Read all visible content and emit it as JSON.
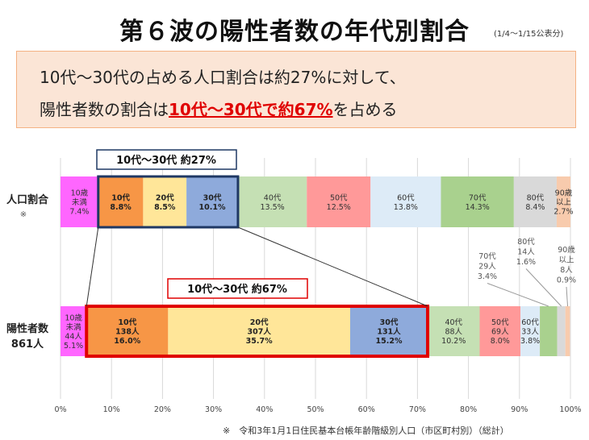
{
  "title": "第６波の陽性者数の年代別割合",
  "period_note": "(1/4～1/15公表分)",
  "summary": {
    "line1": "10代～30代の占める人口割合は約27%に対して、",
    "line2_prefix": "陽性者数の割合は",
    "line2_highlight": "10代～30代で約67%",
    "line2_suffix": "を占める"
  },
  "footnote": "※　令和3年1月1日住民基本台帳年齢階級別人口（市区町村別）（総計）",
  "colors": {
    "under10": "#ff66ff",
    "10s": "#f79646",
    "20s": "#ffe699",
    "30s": "#8eaadb",
    "40s": "#c5e0b4",
    "50s": "#ff9999",
    "60s": "#ddebf7",
    "70s": "#a9d18e",
    "80s": "#d9d9d9",
    "90plus": "#f8cbad",
    "highlight_box_pop": "#1f3864",
    "highlight_box_pos": "#e00000"
  },
  "chart_data": {
    "type": "bar",
    "orientation": "horizontal-stacked-100",
    "x_ticks": [
      "0%",
      "10%",
      "20%",
      "30%",
      "40%",
      "50%",
      "60%",
      "70%",
      "80%",
      "90%",
      "100%"
    ],
    "xlim": [
      0,
      100
    ],
    "grid": true,
    "categories": [
      "人口割合",
      "陽性者数"
    ],
    "row_labels": {
      "population": {
        "main": "人口割合",
        "note": "※"
      },
      "positives": {
        "main": "陽性者数",
        "sub": "861人"
      }
    },
    "series": [
      {
        "key": "under10",
        "name": "10歳未満",
        "population_pct": 7.4,
        "positives_pct": 5.1,
        "positives_count": 44,
        "pop_label": [
          "10歳",
          "未満",
          "7.4%"
        ],
        "pos_label": [
          "10歳",
          "未満",
          "44人",
          "5.1%"
        ]
      },
      {
        "key": "10s",
        "name": "10代",
        "population_pct": 8.8,
        "positives_pct": 16.0,
        "positives_count": 138,
        "pop_label": [
          "10代",
          "8.8%"
        ],
        "pos_label": [
          "10代",
          "138人",
          "16.0%"
        ]
      },
      {
        "key": "20s",
        "name": "20代",
        "population_pct": 8.5,
        "positives_pct": 35.7,
        "positives_count": 307,
        "pop_label": [
          "20代",
          "8.5%"
        ],
        "pos_label": [
          "20代",
          "307人",
          "35.7%"
        ]
      },
      {
        "key": "30s",
        "name": "30代",
        "population_pct": 10.1,
        "positives_pct": 15.2,
        "positives_count": 131,
        "pop_label": [
          "30代",
          "10.1%"
        ],
        "pos_label": [
          "30代",
          "131人",
          "15.2%"
        ]
      },
      {
        "key": "40s",
        "name": "40代",
        "population_pct": 13.5,
        "positives_pct": 10.2,
        "positives_count": 88,
        "pop_label": [
          "40代",
          "13.5%"
        ],
        "pos_label": [
          "40代",
          "88人",
          "10.2%"
        ]
      },
      {
        "key": "50s",
        "name": "50代",
        "population_pct": 12.5,
        "positives_pct": 8.0,
        "positives_count": 69,
        "pop_label": [
          "50代",
          "12.5%"
        ],
        "pos_label": [
          "50代",
          "69人",
          "8.0%"
        ]
      },
      {
        "key": "60s",
        "name": "60代",
        "population_pct": 13.8,
        "positives_pct": 3.8,
        "positives_count": 33,
        "pop_label": [
          "60代",
          "13.8%"
        ],
        "pos_label": [
          "60代",
          "33人",
          "3.8%"
        ]
      },
      {
        "key": "70s",
        "name": "70代",
        "population_pct": 14.3,
        "positives_pct": 3.4,
        "positives_count": 29,
        "pop_label": [
          "70代",
          "14.3%"
        ],
        "callout": [
          "70代",
          "29人",
          "3.4%"
        ]
      },
      {
        "key": "80s",
        "name": "80代",
        "population_pct": 8.4,
        "positives_pct": 1.6,
        "positives_count": 14,
        "pop_label": [
          "80代",
          "8.4%"
        ],
        "callout": [
          "80代",
          "14人",
          "1.6%"
        ]
      },
      {
        "key": "90plus",
        "name": "90歳以上",
        "population_pct": 2.7,
        "positives_pct": 0.9,
        "positives_count": 8,
        "pop_label": [
          "90歳",
          "以上",
          "2.7%"
        ],
        "callout": [
          "90歳",
          "以上",
          "8人",
          "0.9%"
        ]
      }
    ],
    "annotations": {
      "population_box": "10代～30代 約27%",
      "positives_box": "10代～30代 約67%"
    }
  }
}
